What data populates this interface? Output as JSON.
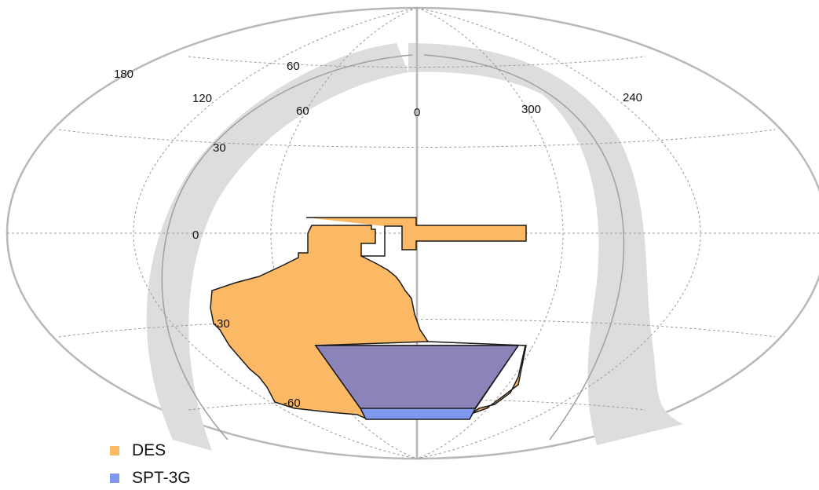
{
  "projection": "Hammer-Aitoff (equatorial coordinates)",
  "colors": {
    "DES": "#fbb865",
    "SPT3G": "#7f97ec",
    "overlap": "#8a84b8",
    "galactic_band": "#dddddd",
    "frame": "#b8b8b8"
  },
  "meridian_labels": [
    {
      "id": "ra-180",
      "text": "180"
    },
    {
      "id": "ra-120",
      "text": "120"
    },
    {
      "id": "ra-60",
      "text": "60"
    },
    {
      "id": "ra-0",
      "text": "0"
    },
    {
      "id": "ra-300",
      "text": "300"
    },
    {
      "id": "ra-240",
      "text": "240"
    }
  ],
  "parallel_labels": [
    {
      "id": "dec-60n",
      "text": "60"
    },
    {
      "id": "dec-30n",
      "text": "30"
    },
    {
      "id": "dec-0",
      "text": "0"
    },
    {
      "id": "dec-30s",
      "text": "-30"
    },
    {
      "id": "dec-60s",
      "text": "-60"
    }
  ],
  "legend": [
    {
      "label": "DES",
      "color": "#fbb865"
    },
    {
      "label": "SPT-3G",
      "color": "#7f97ec"
    }
  ]
}
